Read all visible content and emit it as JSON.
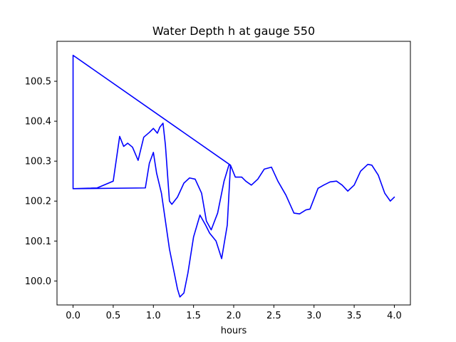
{
  "chart_data": {
    "type": "line",
    "title": "Water Depth h at gauge 550",
    "xlabel": "hours",
    "ylabel": "",
    "xlim": [
      -0.2,
      4.2
    ],
    "ylim": [
      99.94,
      100.6
    ],
    "xticks": [
      "0.0",
      "0.5",
      "1.0",
      "1.5",
      "2.0",
      "2.5",
      "3.0",
      "3.5",
      "4.0"
    ],
    "yticks": [
      "100.0",
      "100.1",
      "100.2",
      "100.3",
      "100.4",
      "100.5"
    ],
    "grid": false,
    "legend": "none",
    "series": [
      {
        "color": "#0000ff",
        "x": [
          0.0,
          0.0,
          0.0,
          0.0,
          0.3,
          0.5,
          0.58,
          0.63,
          0.68,
          0.74,
          0.81,
          0.88,
          0.95,
          1.0,
          1.05,
          1.08,
          1.12,
          1.15,
          1.2,
          1.23,
          1.3,
          1.38,
          1.45,
          1.52,
          1.6,
          1.66,
          1.72,
          1.8,
          1.88,
          1.94,
          1.96,
          0.0,
          0.0,
          0.9,
          0.95,
          1.0,
          1.04,
          1.1,
          1.2,
          1.3,
          1.33,
          1.38,
          1.43,
          1.5,
          1.58,
          1.65,
          1.7,
          1.78,
          1.85,
          1.92,
          1.96,
          2.02,
          2.1,
          2.15,
          2.22,
          2.3,
          2.38,
          2.47,
          2.55,
          2.65,
          2.75,
          2.82,
          2.9,
          2.95,
          3.05,
          3.12,
          3.2,
          3.28,
          3.35,
          3.42,
          3.5,
          3.58,
          3.67,
          3.72,
          3.8,
          3.88,
          3.95,
          4.0
        ],
        "y": [
          100.565,
          100.232,
          100.231,
          100.231,
          100.233,
          100.25,
          100.362,
          100.337,
          100.345,
          100.335,
          100.302,
          100.36,
          100.372,
          100.382,
          100.37,
          100.385,
          100.395,
          100.34,
          100.2,
          100.192,
          100.21,
          100.245,
          100.258,
          100.255,
          100.22,
          100.15,
          100.128,
          100.17,
          100.25,
          100.29,
          100.29,
          100.565,
          100.231,
          100.233,
          100.295,
          100.322,
          100.27,
          100.22,
          100.08,
          99.98,
          99.96,
          99.97,
          100.02,
          100.11,
          100.165,
          100.14,
          100.12,
          100.1,
          100.056,
          100.14,
          100.29,
          100.26,
          100.26,
          100.25,
          100.24,
          100.255,
          100.28,
          100.285,
          100.25,
          100.215,
          100.17,
          100.168,
          100.178,
          100.18,
          100.232,
          100.24,
          100.248,
          100.25,
          100.24,
          100.225,
          100.24,
          100.275,
          100.292,
          100.29,
          100.265,
          100.22,
          100.2,
          100.21
        ]
      }
    ]
  }
}
